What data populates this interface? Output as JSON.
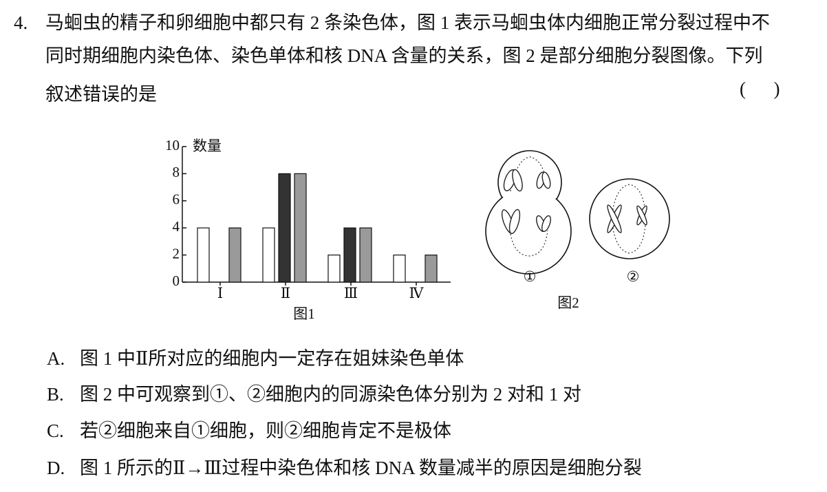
{
  "question": {
    "number": "4.",
    "stem": [
      "马蛔虫的精子和卵细胞中都只有 2 条染色体，图 1 表示马蛔虫体内细胞正常分裂过程中不",
      "同时期细胞内染色体、染色单体和核 DNA 含量的关系，图 2 是部分细胞分裂图像。下列",
      "叙述错误的是"
    ],
    "blank": "(      )"
  },
  "chart_data": {
    "type": "bar",
    "y_label": "数量",
    "caption": "图1",
    "categories": [
      "Ⅰ",
      "Ⅱ",
      "Ⅲ",
      "Ⅳ"
    ],
    "series": [
      {
        "color": "#ffffff",
        "values": [
          4,
          4,
          2,
          2
        ]
      },
      {
        "color": "#333333",
        "values": [
          0,
          8,
          4,
          0
        ]
      },
      {
        "color": "#9a9a9a",
        "values": [
          4,
          8,
          4,
          2
        ]
      }
    ],
    "ylim": [
      0,
      10
    ],
    "yticks": [
      0,
      2,
      4,
      6,
      8,
      10
    ]
  },
  "figure2": {
    "cells": [
      "①",
      "②"
    ],
    "caption": "图2"
  },
  "options": [
    {
      "letter": "A.",
      "text": "图 1 中Ⅱ所对应的细胞内一定存在姐妹染色单体"
    },
    {
      "letter": "B.",
      "text": "图 2 中可观察到①、②细胞内的同源染色体分别为 2 对和 1 对"
    },
    {
      "letter": "C.",
      "text": "若②细胞来自①细胞，则②细胞肯定不是极体"
    },
    {
      "letter": "D.",
      "text": "图 1 所示的Ⅱ→Ⅲ过程中染色体和核 DNA 数量减半的原因是细胞分裂"
    }
  ]
}
